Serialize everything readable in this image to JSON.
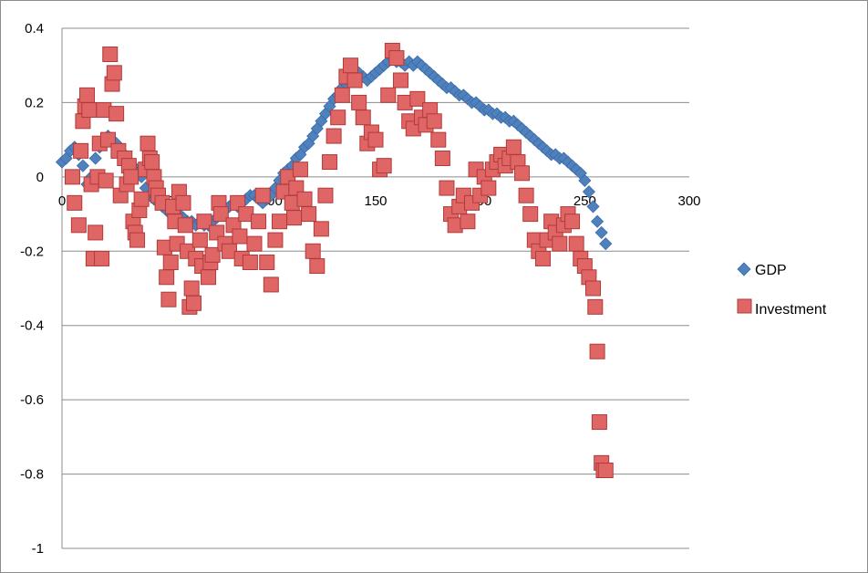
{
  "chart_data": {
    "type": "scatter",
    "title": "",
    "xlabel": "",
    "ylabel": "",
    "xlim": [
      0,
      300
    ],
    "ylim": [
      -1,
      0.4
    ],
    "x_ticks": [
      "0",
      "50",
      "100",
      "150",
      "200",
      "250",
      "300"
    ],
    "y_ticks": [
      "0.4",
      "0.2",
      "0",
      "-0.2",
      "-0.4",
      "-0.6",
      "-0.8",
      "-1"
    ],
    "grid": "horizontal",
    "legend_position": "right",
    "series": [
      {
        "name": "GDP",
        "marker": "diamond",
        "color": "#4f81bd",
        "x": [
          0,
          2,
          4,
          6,
          8,
          10,
          12,
          14,
          16,
          18,
          20,
          22,
          24,
          26,
          28,
          30,
          32,
          34,
          36,
          38,
          40,
          42,
          44,
          46,
          48,
          50,
          52,
          54,
          56,
          58,
          60,
          62,
          64,
          66,
          68,
          70,
          72,
          74,
          76,
          78,
          80,
          82,
          84,
          86,
          88,
          90,
          92,
          94,
          96,
          98,
          100,
          102,
          104,
          106,
          108,
          110,
          112,
          114,
          116,
          118,
          120,
          122,
          124,
          126,
          128,
          130,
          132,
          134,
          136,
          138,
          140,
          142,
          144,
          146,
          148,
          150,
          152,
          154,
          156,
          158,
          160,
          162,
          164,
          166,
          168,
          170,
          172,
          174,
          176,
          178,
          180,
          182,
          184,
          186,
          188,
          190,
          192,
          194,
          196,
          198,
          200,
          202,
          204,
          206,
          208,
          210,
          212,
          214,
          216,
          218,
          220,
          222,
          224,
          226,
          228,
          230,
          232,
          234,
          236,
          238,
          240,
          242,
          244,
          246,
          248,
          250,
          252,
          254,
          256,
          258,
          260
        ],
        "y": [
          0.04,
          0.05,
          0.07,
          0.08,
          0.06,
          0.03,
          -0.02,
          0.0,
          0.05,
          0.08,
          0.1,
          0.11,
          0.1,
          0.09,
          0.07,
          0.06,
          0.04,
          0.03,
          0.01,
          0.0,
          -0.03,
          -0.05,
          -0.06,
          -0.07,
          -0.08,
          -0.09,
          -0.1,
          -0.11,
          -0.1,
          -0.11,
          -0.12,
          -0.12,
          -0.13,
          -0.12,
          -0.13,
          -0.13,
          -0.12,
          -0.11,
          -0.1,
          -0.09,
          -0.08,
          -0.07,
          -0.08,
          -0.07,
          -0.06,
          -0.05,
          -0.05,
          -0.06,
          -0.07,
          -0.06,
          -0.05,
          -0.03,
          -0.01,
          0.01,
          0.02,
          0.03,
          0.05,
          0.06,
          0.08,
          0.09,
          0.11,
          0.13,
          0.15,
          0.17,
          0.19,
          0.21,
          0.22,
          0.24,
          0.25,
          0.26,
          0.27,
          0.28,
          0.27,
          0.26,
          0.27,
          0.28,
          0.29,
          0.3,
          0.31,
          0.32,
          0.31,
          0.31,
          0.3,
          0.31,
          0.3,
          0.31,
          0.3,
          0.29,
          0.28,
          0.27,
          0.26,
          0.25,
          0.24,
          0.24,
          0.23,
          0.22,
          0.22,
          0.21,
          0.2,
          0.2,
          0.19,
          0.18,
          0.18,
          0.17,
          0.17,
          0.16,
          0.16,
          0.15,
          0.15,
          0.14,
          0.13,
          0.12,
          0.11,
          0.1,
          0.09,
          0.08,
          0.07,
          0.06,
          0.06,
          0.05,
          0.05,
          0.04,
          0.03,
          0.02,
          0.01,
          -0.01,
          -0.04,
          -0.08,
          -0.12,
          -0.15,
          -0.18
        ]
      },
      {
        "name": "Investment",
        "marker": "square",
        "color": "#e06666",
        "x": [
          5,
          6,
          8,
          9,
          10,
          11,
          12,
          13,
          14,
          15,
          16,
          17,
          18,
          19,
          20,
          21,
          22,
          23,
          24,
          25,
          26,
          27,
          28,
          30,
          31,
          32,
          33,
          34,
          35,
          36,
          37,
          38,
          40,
          41,
          42,
          43,
          44,
          45,
          46,
          48,
          49,
          50,
          51,
          52,
          53,
          54,
          55,
          56,
          58,
          59,
          60,
          61,
          62,
          63,
          64,
          66,
          67,
          68,
          70,
          71,
          72,
          74,
          75,
          76,
          78,
          80,
          82,
          84,
          85,
          86,
          88,
          90,
          92,
          94,
          96,
          98,
          100,
          102,
          104,
          106,
          108,
          110,
          111,
          112,
          114,
          116,
          118,
          120,
          122,
          124,
          126,
          128,
          130,
          132,
          134,
          136,
          138,
          140,
          142,
          144,
          146,
          148,
          150,
          152,
          154,
          156,
          158,
          160,
          162,
          164,
          166,
          168,
          170,
          172,
          174,
          176,
          178,
          180,
          182,
          184,
          186,
          188,
          190,
          192,
          194,
          196,
          198,
          200,
          202,
          204,
          206,
          208,
          210,
          212,
          214,
          216,
          218,
          220,
          222,
          224,
          226,
          228,
          230,
          232,
          234,
          236,
          238,
          240,
          242,
          244,
          246,
          248,
          250,
          252,
          254,
          255,
          256,
          257,
          258,
          259,
          260
        ],
        "y": [
          0.0,
          -0.07,
          -0.13,
          0.07,
          0.15,
          0.19,
          0.22,
          0.18,
          -0.02,
          -0.22,
          -0.15,
          0.0,
          0.09,
          -0.22,
          0.18,
          -0.01,
          0.1,
          0.33,
          0.25,
          0.28,
          0.17,
          0.07,
          -0.05,
          0.05,
          -0.02,
          0.03,
          0.0,
          -0.12,
          -0.15,
          -0.17,
          -0.09,
          -0.06,
          0.02,
          0.09,
          0.05,
          0.04,
          0.0,
          -0.03,
          -0.05,
          -0.07,
          -0.19,
          -0.27,
          -0.33,
          -0.23,
          -0.08,
          -0.12,
          -0.18,
          -0.04,
          -0.07,
          -0.13,
          -0.2,
          -0.35,
          -0.3,
          -0.34,
          -0.22,
          -0.17,
          -0.24,
          -0.12,
          -0.27,
          -0.23,
          -0.21,
          -0.15,
          -0.07,
          -0.1,
          -0.18,
          -0.2,
          -0.13,
          -0.07,
          -0.16,
          -0.22,
          -0.1,
          -0.23,
          -0.18,
          -0.12,
          -0.05,
          -0.23,
          -0.29,
          -0.17,
          -0.12,
          -0.04,
          0.0,
          -0.07,
          -0.11,
          -0.03,
          0.02,
          -0.06,
          -0.1,
          -0.2,
          -0.24,
          -0.14,
          -0.05,
          0.04,
          0.11,
          0.16,
          0.22,
          0.27,
          0.3,
          0.26,
          0.2,
          0.16,
          0.09,
          0.12,
          0.1,
          0.02,
          0.03,
          0.22,
          0.34,
          0.32,
          0.26,
          0.2,
          0.15,
          0.13,
          0.21,
          0.16,
          0.14,
          0.18,
          0.15,
          0.1,
          0.05,
          -0.03,
          -0.1,
          -0.13,
          -0.08,
          -0.05,
          -0.12,
          -0.07,
          0.02,
          -0.05,
          0.0,
          -0.03,
          0.02,
          0.04,
          0.06,
          0.03,
          0.05,
          0.08,
          0.04,
          0.01,
          -0.05,
          -0.1,
          -0.17,
          -0.2,
          -0.22,
          -0.17,
          -0.12,
          -0.15,
          -0.18,
          -0.13,
          -0.1,
          -0.12,
          -0.18,
          -0.22,
          -0.24,
          -0.27,
          -0.3,
          -0.35,
          -0.47,
          -0.66,
          -0.77,
          -0.79,
          -0.79
        ]
      }
    ]
  }
}
